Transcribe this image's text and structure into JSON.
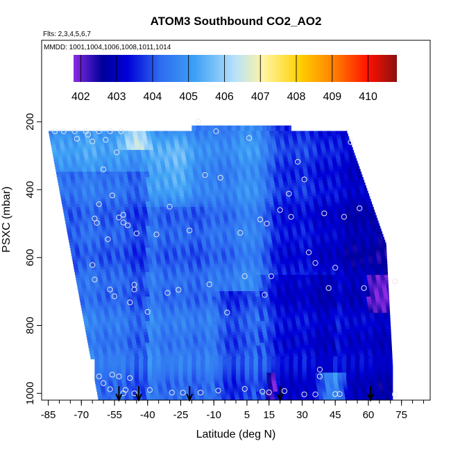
{
  "chart_data": {
    "type": "heatmap",
    "title": "ATOM3 Southbound CO2_AO2",
    "flights_label": "Flts: 2,3,4,5,6,7",
    "mmdd_label": "MMDD: 1001,1004,1006,1008,1011,1014",
    "xlabel": "Latitude (deg N)",
    "ylabel": "PSXC (mbar)",
    "x_ticks": [
      -85,
      -70,
      -55,
      -40,
      -25,
      -10,
      5,
      15,
      30,
      45,
      60,
      75
    ],
    "x_tick_labels": [
      "-85",
      "-70",
      "-55",
      "-40",
      "-25",
      "-10",
      "5",
      "15",
      "30",
      "45",
      "60",
      "75"
    ],
    "y_ticks": [
      200,
      400,
      600,
      800,
      1000
    ],
    "y_tick_labels": [
      "200",
      "400",
      "600",
      "800",
      "1000"
    ],
    "xlim": [
      -88,
      88
    ],
    "ylim": [
      1020,
      -40
    ],
    "y_reversed": true,
    "colorbar": {
      "ticks": [
        402,
        403,
        404,
        405,
        406,
        407,
        408,
        409,
        410
      ],
      "tick_labels": [
        "402",
        "403",
        "404",
        "405",
        "406",
        "407",
        "408",
        "409",
        "410"
      ],
      "range": [
        401.8,
        410.8
      ],
      "colors": [
        "#8a2be2",
        "#00009a",
        "#0000d8",
        "#2d6bf0",
        "#3fa2f5",
        "#b8e2fb",
        "#fff4a0",
        "#ffd000",
        "#ff7a00",
        "#ff1000",
        "#8b1010"
      ],
      "color_stops": [
        401.8,
        402.6,
        403.3,
        404.2,
        405.2,
        406.3,
        407.1,
        408.1,
        409.1,
        410.0,
        410.8
      ]
    },
    "arrow_latitudes": [
      -53,
      -44,
      -21,
      20,
      61
    ],
    "sample_points": [
      [
        -82,
        228
      ],
      [
        -78,
        228
      ],
      [
        -73,
        228
      ],
      [
        -68,
        228
      ],
      [
        -62,
        228
      ],
      [
        -57,
        228
      ],
      [
        -52,
        228
      ],
      [
        -67,
        238
      ],
      [
        -65,
        258
      ],
      [
        -72,
        250
      ],
      [
        -59,
        253
      ],
      [
        -54,
        290
      ],
      [
        -60,
        340
      ],
      [
        -56,
        417
      ],
      [
        -63,
        498
      ],
      [
        -62,
        443
      ],
      [
        -64,
        485
      ],
      [
        -53,
        482
      ],
      [
        -51,
        497
      ],
      [
        -49,
        505
      ],
      [
        -51,
        474
      ],
      [
        -58,
        546
      ],
      [
        -45,
        529
      ],
      [
        -65,
        622
      ],
      [
        -64,
        665
      ],
      [
        -57,
        694
      ],
      [
        -55,
        714
      ],
      [
        -46,
        694
      ],
      [
        -46,
        680
      ],
      [
        -48,
        732
      ],
      [
        -40,
        760
      ],
      [
        -26,
        695
      ],
      [
        -31,
        704
      ],
      [
        -21,
        520
      ],
      [
        -17,
        199
      ],
      [
        -9,
        228
      ],
      [
        -14,
        357
      ],
      [
        -7,
        365
      ],
      [
        -30,
        450
      ],
      [
        -36,
        532
      ],
      [
        -12,
        679
      ],
      [
        -4,
        762
      ],
      [
        2,
        527
      ],
      [
        4,
        655
      ],
      [
        6,
        248
      ],
      [
        11,
        488
      ],
      [
        16,
        655
      ],
      [
        13,
        710
      ],
      [
        20,
        460
      ],
      [
        14,
        500
      ],
      [
        24,
        412
      ],
      [
        25,
        480
      ],
      [
        28,
        318
      ],
      [
        31,
        370
      ],
      [
        33,
        585
      ],
      [
        36,
        616
      ],
      [
        38,
        930
      ],
      [
        38,
        950
      ],
      [
        40,
        470
      ],
      [
        45,
        630
      ],
      [
        42,
        690
      ],
      [
        58,
        690
      ],
      [
        49,
        480
      ],
      [
        52,
        260
      ],
      [
        56,
        455
      ],
      [
        72,
        670
      ],
      [
        -62,
        950
      ],
      [
        -56,
        945
      ],
      [
        -53,
        950
      ],
      [
        -48,
        955
      ],
      [
        -60,
        970
      ],
      [
        -51,
        1000
      ],
      [
        -46,
        1000
      ],
      [
        -57,
        988
      ],
      [
        -50,
        990
      ],
      [
        -39,
        990
      ],
      [
        -29,
        998
      ],
      [
        -24,
        998
      ],
      [
        -16,
        998
      ],
      [
        -8,
        992
      ],
      [
        4,
        987
      ],
      [
        12,
        995
      ],
      [
        15,
        997
      ],
      [
        22,
        993
      ],
      [
        31,
        1003
      ],
      [
        36,
        1003
      ],
      [
        45,
        1002
      ],
      [
        47,
        1002
      ],
      [
        72,
        1003
      ]
    ]
  }
}
